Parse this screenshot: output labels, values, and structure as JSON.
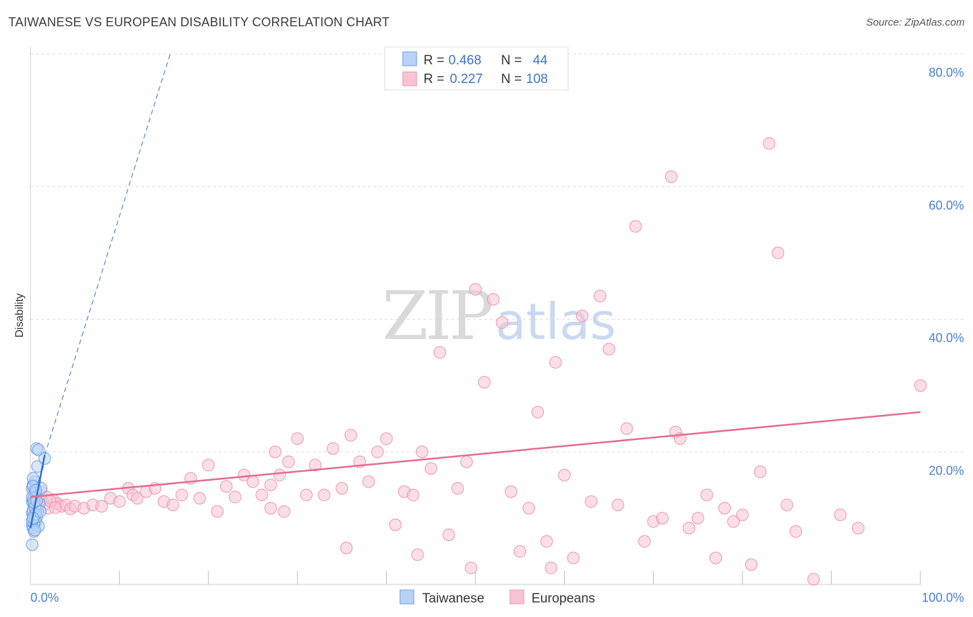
{
  "title": "TAIWANESE VS EUROPEAN DISABILITY CORRELATION CHART",
  "source": "Source: ZipAtlas.com",
  "colors": {
    "blue_fill": "#b8d3f5",
    "blue_stroke": "#6d9ee3",
    "blue_line": "#2f6fd0",
    "pink_fill": "#f7c4d4",
    "pink_stroke": "#ee93b0",
    "pink_line": "#e46b95",
    "tick_text": "#4a80d0",
    "grid": "#dddddd"
  },
  "legend": {
    "rows": [
      {
        "r_label": "R = ",
        "r_value": "0.468",
        "n_label": "N = ",
        "n_value": "44",
        "series": "blue"
      },
      {
        "r_label": "R = ",
        "r_value": "0.227",
        "n_label": "N = ",
        "n_value": "108",
        "series": "pink"
      }
    ]
  },
  "watermark": {
    "zip": "ZIP",
    "atlas": "atlas"
  },
  "chart_data": {
    "type": "scatter",
    "title": "TAIWANESE VS EUROPEAN DISABILITY CORRELATION CHART",
    "xlabel": "",
    "ylabel": "Disability",
    "xlim": [
      0,
      100
    ],
    "ylim": [
      0,
      80
    ],
    "x_tick_labels": [
      "0.0%",
      "100.0%"
    ],
    "y_ticks": [
      20,
      40,
      60,
      80
    ],
    "y_tick_labels": [
      "20.0%",
      "40.0%",
      "60.0%",
      "80.0%"
    ],
    "grid": true,
    "legend_position": "top-center",
    "series": [
      {
        "name": "Taiwanese",
        "color_key": "blue",
        "r": 0.468,
        "n": 44,
        "trend": {
          "x0": 0.0,
          "y0": 8.5,
          "x1": 1.6,
          "y1": 19.5,
          "dash_x1": 15.7,
          "dash_y1": 80.0
        },
        "points": [
          [
            0.2,
            12.5
          ],
          [
            0.4,
            11.8
          ],
          [
            0.3,
            10.5
          ],
          [
            0.5,
            9.8
          ],
          [
            0.6,
            12.0
          ],
          [
            0.2,
            14.5
          ],
          [
            0.4,
            13.5
          ],
          [
            0.3,
            15.0
          ],
          [
            0.5,
            10.0
          ],
          [
            0.7,
            11.5
          ],
          [
            0.2,
            9.0
          ],
          [
            0.3,
            8.5
          ],
          [
            0.6,
            9.5
          ],
          [
            0.4,
            13.0
          ],
          [
            0.8,
            11.0
          ],
          [
            0.3,
            12.8
          ],
          [
            0.5,
            14.0
          ],
          [
            0.2,
            10.8
          ],
          [
            0.9,
            8.8
          ],
          [
            0.4,
            9.2
          ],
          [
            0.6,
            13.8
          ],
          [
            0.3,
            11.2
          ],
          [
            0.7,
            10.2
          ],
          [
            1.0,
            12.2
          ],
          [
            0.2,
            13.2
          ],
          [
            0.5,
            15.5
          ],
          [
            0.4,
            8.0
          ],
          [
            0.3,
            16.0
          ],
          [
            0.8,
            17.8
          ],
          [
            0.7,
            20.5
          ],
          [
            0.9,
            20.3
          ],
          [
            1.6,
            19.0
          ],
          [
            0.2,
            6.0
          ],
          [
            0.5,
            11.6
          ],
          [
            0.6,
            10.6
          ],
          [
            0.3,
            14.8
          ],
          [
            1.2,
            14.5
          ],
          [
            0.4,
            12.4
          ],
          [
            0.2,
            9.6
          ],
          [
            0.7,
            12.6
          ],
          [
            0.5,
            8.2
          ],
          [
            1.1,
            11.0
          ],
          [
            0.3,
            10.0
          ],
          [
            0.6,
            14.2
          ]
        ]
      },
      {
        "name": "Europeans",
        "color_key": "pink",
        "r": 0.227,
        "n": 108,
        "trend": {
          "x0": 0.0,
          "y0": 13.2,
          "x1": 100.0,
          "y1": 26.0
        },
        "points": [
          [
            0.5,
            12.5
          ],
          [
            1.0,
            13.0
          ],
          [
            1.5,
            12.0
          ],
          [
            2.0,
            11.5
          ],
          [
            2.5,
            12.8
          ],
          [
            3.0,
            12.2
          ],
          [
            3.5,
            11.8
          ],
          [
            1.2,
            14.0
          ],
          [
            1.8,
            13.2
          ],
          [
            2.2,
            12.6
          ],
          [
            2.8,
            11.6
          ],
          [
            4.0,
            12.0
          ],
          [
            4.5,
            11.4
          ],
          [
            5.0,
            11.8
          ],
          [
            6.0,
            11.5
          ],
          [
            7.0,
            12.0
          ],
          [
            8.0,
            11.8
          ],
          [
            9.0,
            13.0
          ],
          [
            10.0,
            12.5
          ],
          [
            11.0,
            14.5
          ],
          [
            11.5,
            13.5
          ],
          [
            12.0,
            13.0
          ],
          [
            13.0,
            14.0
          ],
          [
            14.0,
            14.5
          ],
          [
            15.0,
            12.5
          ],
          [
            16.0,
            12.0
          ],
          [
            17.0,
            13.5
          ],
          [
            18.0,
            16.0
          ],
          [
            19.0,
            13.0
          ],
          [
            20.0,
            18.0
          ],
          [
            21.0,
            11.0
          ],
          [
            22.0,
            14.8
          ],
          [
            23.0,
            13.2
          ],
          [
            24.0,
            16.5
          ],
          [
            25.0,
            15.5
          ],
          [
            26.0,
            13.5
          ],
          [
            27.0,
            15.0
          ],
          [
            27.5,
            20.0
          ],
          [
            28.0,
            16.5
          ],
          [
            28.5,
            11.0
          ],
          [
            29.0,
            18.5
          ],
          [
            30.0,
            22.0
          ],
          [
            31.0,
            13.5
          ],
          [
            32.0,
            18.0
          ],
          [
            33.0,
            13.5
          ],
          [
            34.0,
            20.5
          ],
          [
            35.0,
            14.5
          ],
          [
            36.0,
            22.5
          ],
          [
            37.0,
            18.5
          ],
          [
            38.0,
            15.5
          ],
          [
            39.0,
            20.0
          ],
          [
            40.0,
            22.0
          ],
          [
            41.0,
            9.0
          ],
          [
            42.0,
            14.0
          ],
          [
            43.0,
            13.5
          ],
          [
            44.0,
            20.0
          ],
          [
            45.0,
            17.5
          ],
          [
            46.0,
            35.0
          ],
          [
            47.0,
            7.5
          ],
          [
            48.0,
            14.5
          ],
          [
            49.0,
            18.5
          ],
          [
            50.0,
            44.5
          ],
          [
            51.0,
            30.5
          ],
          [
            52.0,
            43.0
          ],
          [
            53.0,
            39.5
          ],
          [
            54.0,
            14.0
          ],
          [
            55.0,
            5.0
          ],
          [
            56.0,
            11.5
          ],
          [
            57.0,
            26.0
          ],
          [
            58.0,
            6.5
          ],
          [
            59.0,
            33.5
          ],
          [
            60.0,
            16.5
          ],
          [
            61.0,
            4.0
          ],
          [
            62.0,
            40.5
          ],
          [
            63.0,
            12.5
          ],
          [
            64.0,
            43.5
          ],
          [
            65.0,
            35.5
          ],
          [
            66.0,
            12.0
          ],
          [
            67.0,
            23.5
          ],
          [
            68.0,
            54.0
          ],
          [
            69.0,
            6.5
          ],
          [
            70.0,
            9.5
          ],
          [
            71.0,
            10.0
          ],
          [
            72.0,
            61.5
          ],
          [
            72.5,
            23.0
          ],
          [
            73.0,
            22.0
          ],
          [
            74.0,
            8.5
          ],
          [
            75.0,
            10.0
          ],
          [
            76.0,
            13.5
          ],
          [
            77.0,
            4.0
          ],
          [
            78.0,
            11.5
          ],
          [
            79.0,
            9.5
          ],
          [
            80.0,
            10.5
          ],
          [
            81.0,
            3.0
          ],
          [
            82.0,
            17.0
          ],
          [
            83.0,
            66.5
          ],
          [
            84.0,
            50.0
          ],
          [
            85.0,
            12.0
          ],
          [
            86.0,
            8.0
          ],
          [
            88.0,
            0.8
          ],
          [
            91.0,
            10.5
          ],
          [
            93.0,
            8.5
          ],
          [
            100.0,
            30.0
          ],
          [
            27.0,
            11.5
          ],
          [
            58.5,
            2.5
          ],
          [
            49.5,
            2.5
          ],
          [
            35.5,
            5.5
          ],
          [
            43.5,
            4.5
          ]
        ]
      }
    ]
  },
  "bottom_legend": [
    {
      "label": "Taiwanese",
      "series": "blue"
    },
    {
      "label": "Europeans",
      "series": "pink"
    }
  ]
}
